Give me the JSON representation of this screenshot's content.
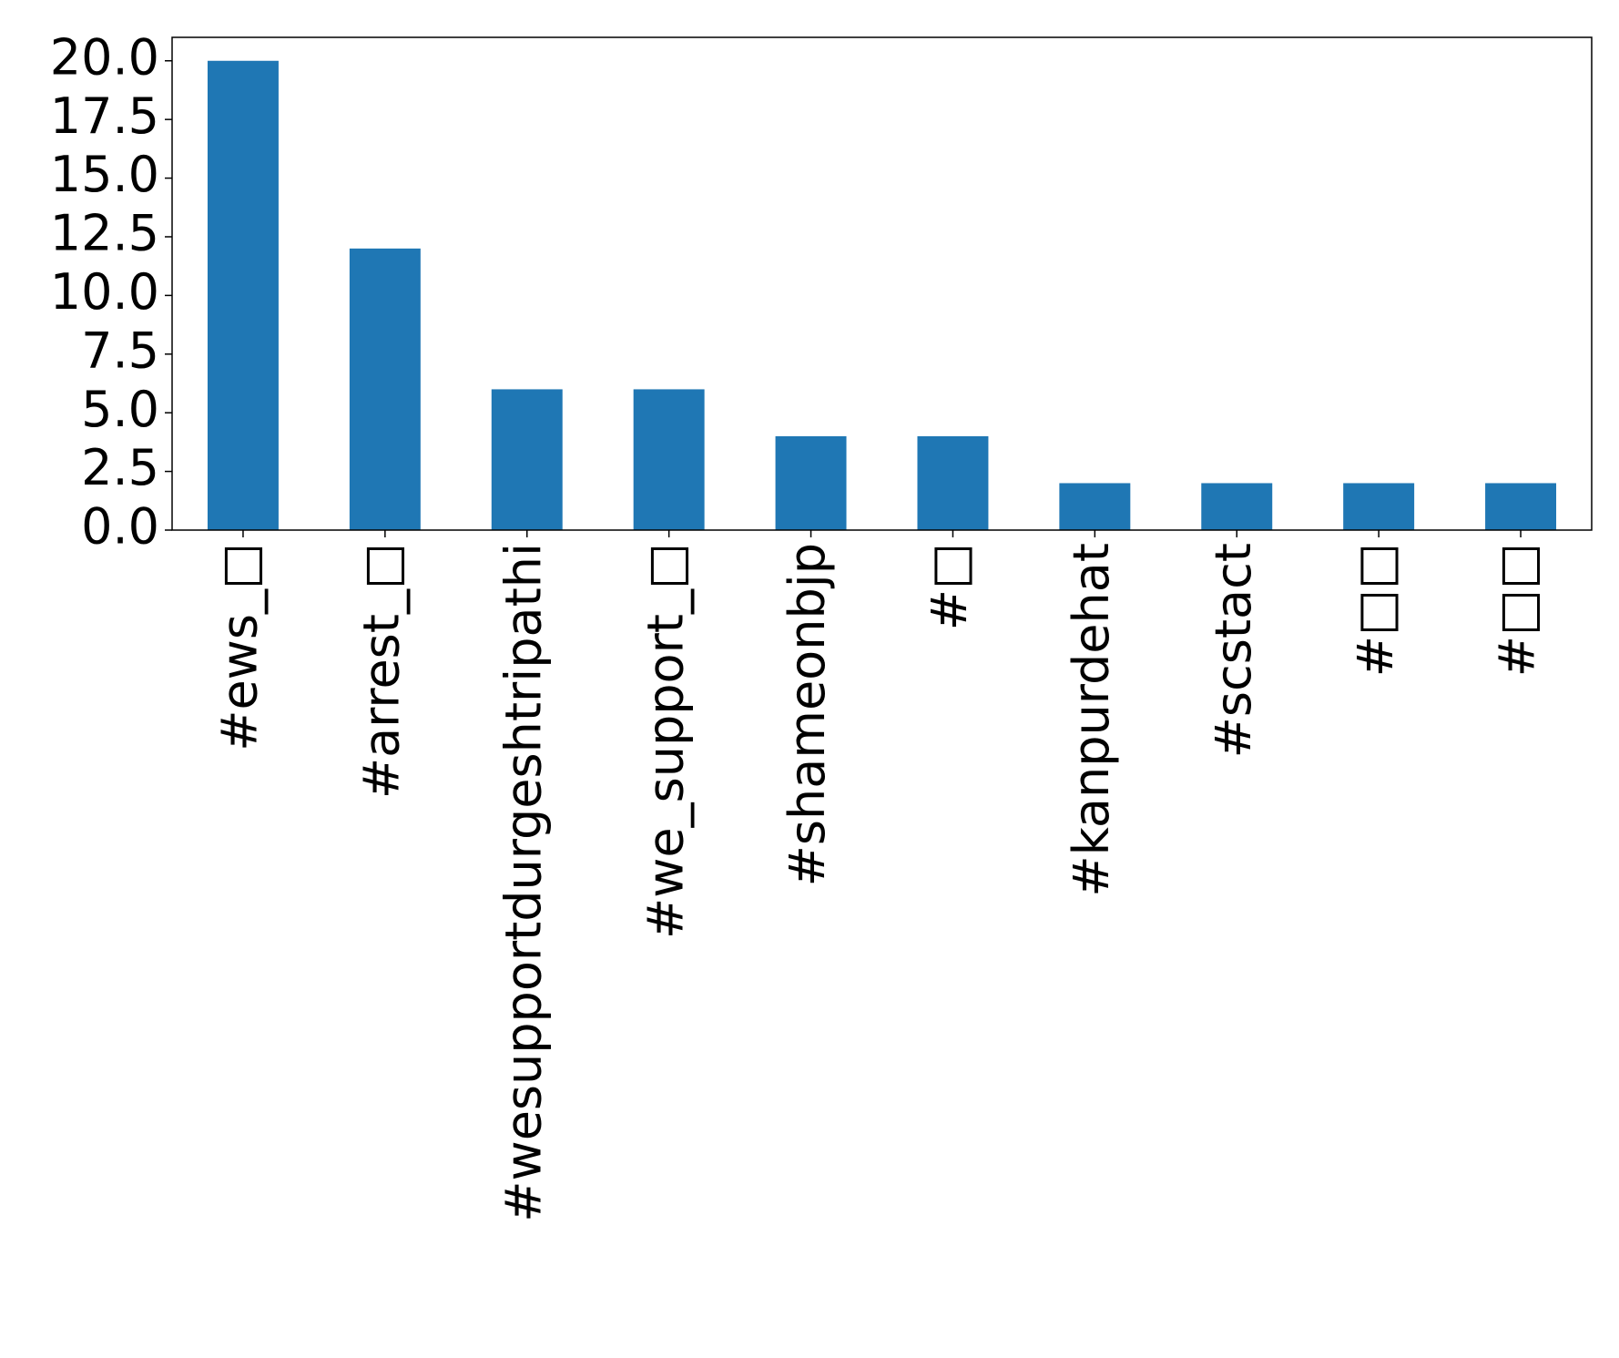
{
  "chart_data": {
    "type": "bar",
    "categories": [
      "#ews_□",
      "#arrest_□",
      "#wesupportdurgeshtripathi",
      "#we_support_□",
      "#shameonbjp",
      "#□",
      "#kanpurdehat",
      "#scstact",
      "#□□",
      "#□□"
    ],
    "values": [
      20,
      12,
      6,
      6,
      4,
      4,
      2,
      2,
      2,
      2
    ],
    "color": "#1f77b4",
    "ylim": [
      0,
      21
    ],
    "yticks": [
      {
        "value": 0,
        "label": "0.0"
      },
      2.5,
      {
        "value": 5,
        "label": "5.0"
      },
      7.5,
      {
        "value": 10,
        "label": "10.0"
      },
      12.5,
      {
        "value": 15,
        "label": "15.0"
      },
      17.5,
      {
        "value": 20,
        "label": "20.0"
      }
    ],
    "grid": false
  }
}
